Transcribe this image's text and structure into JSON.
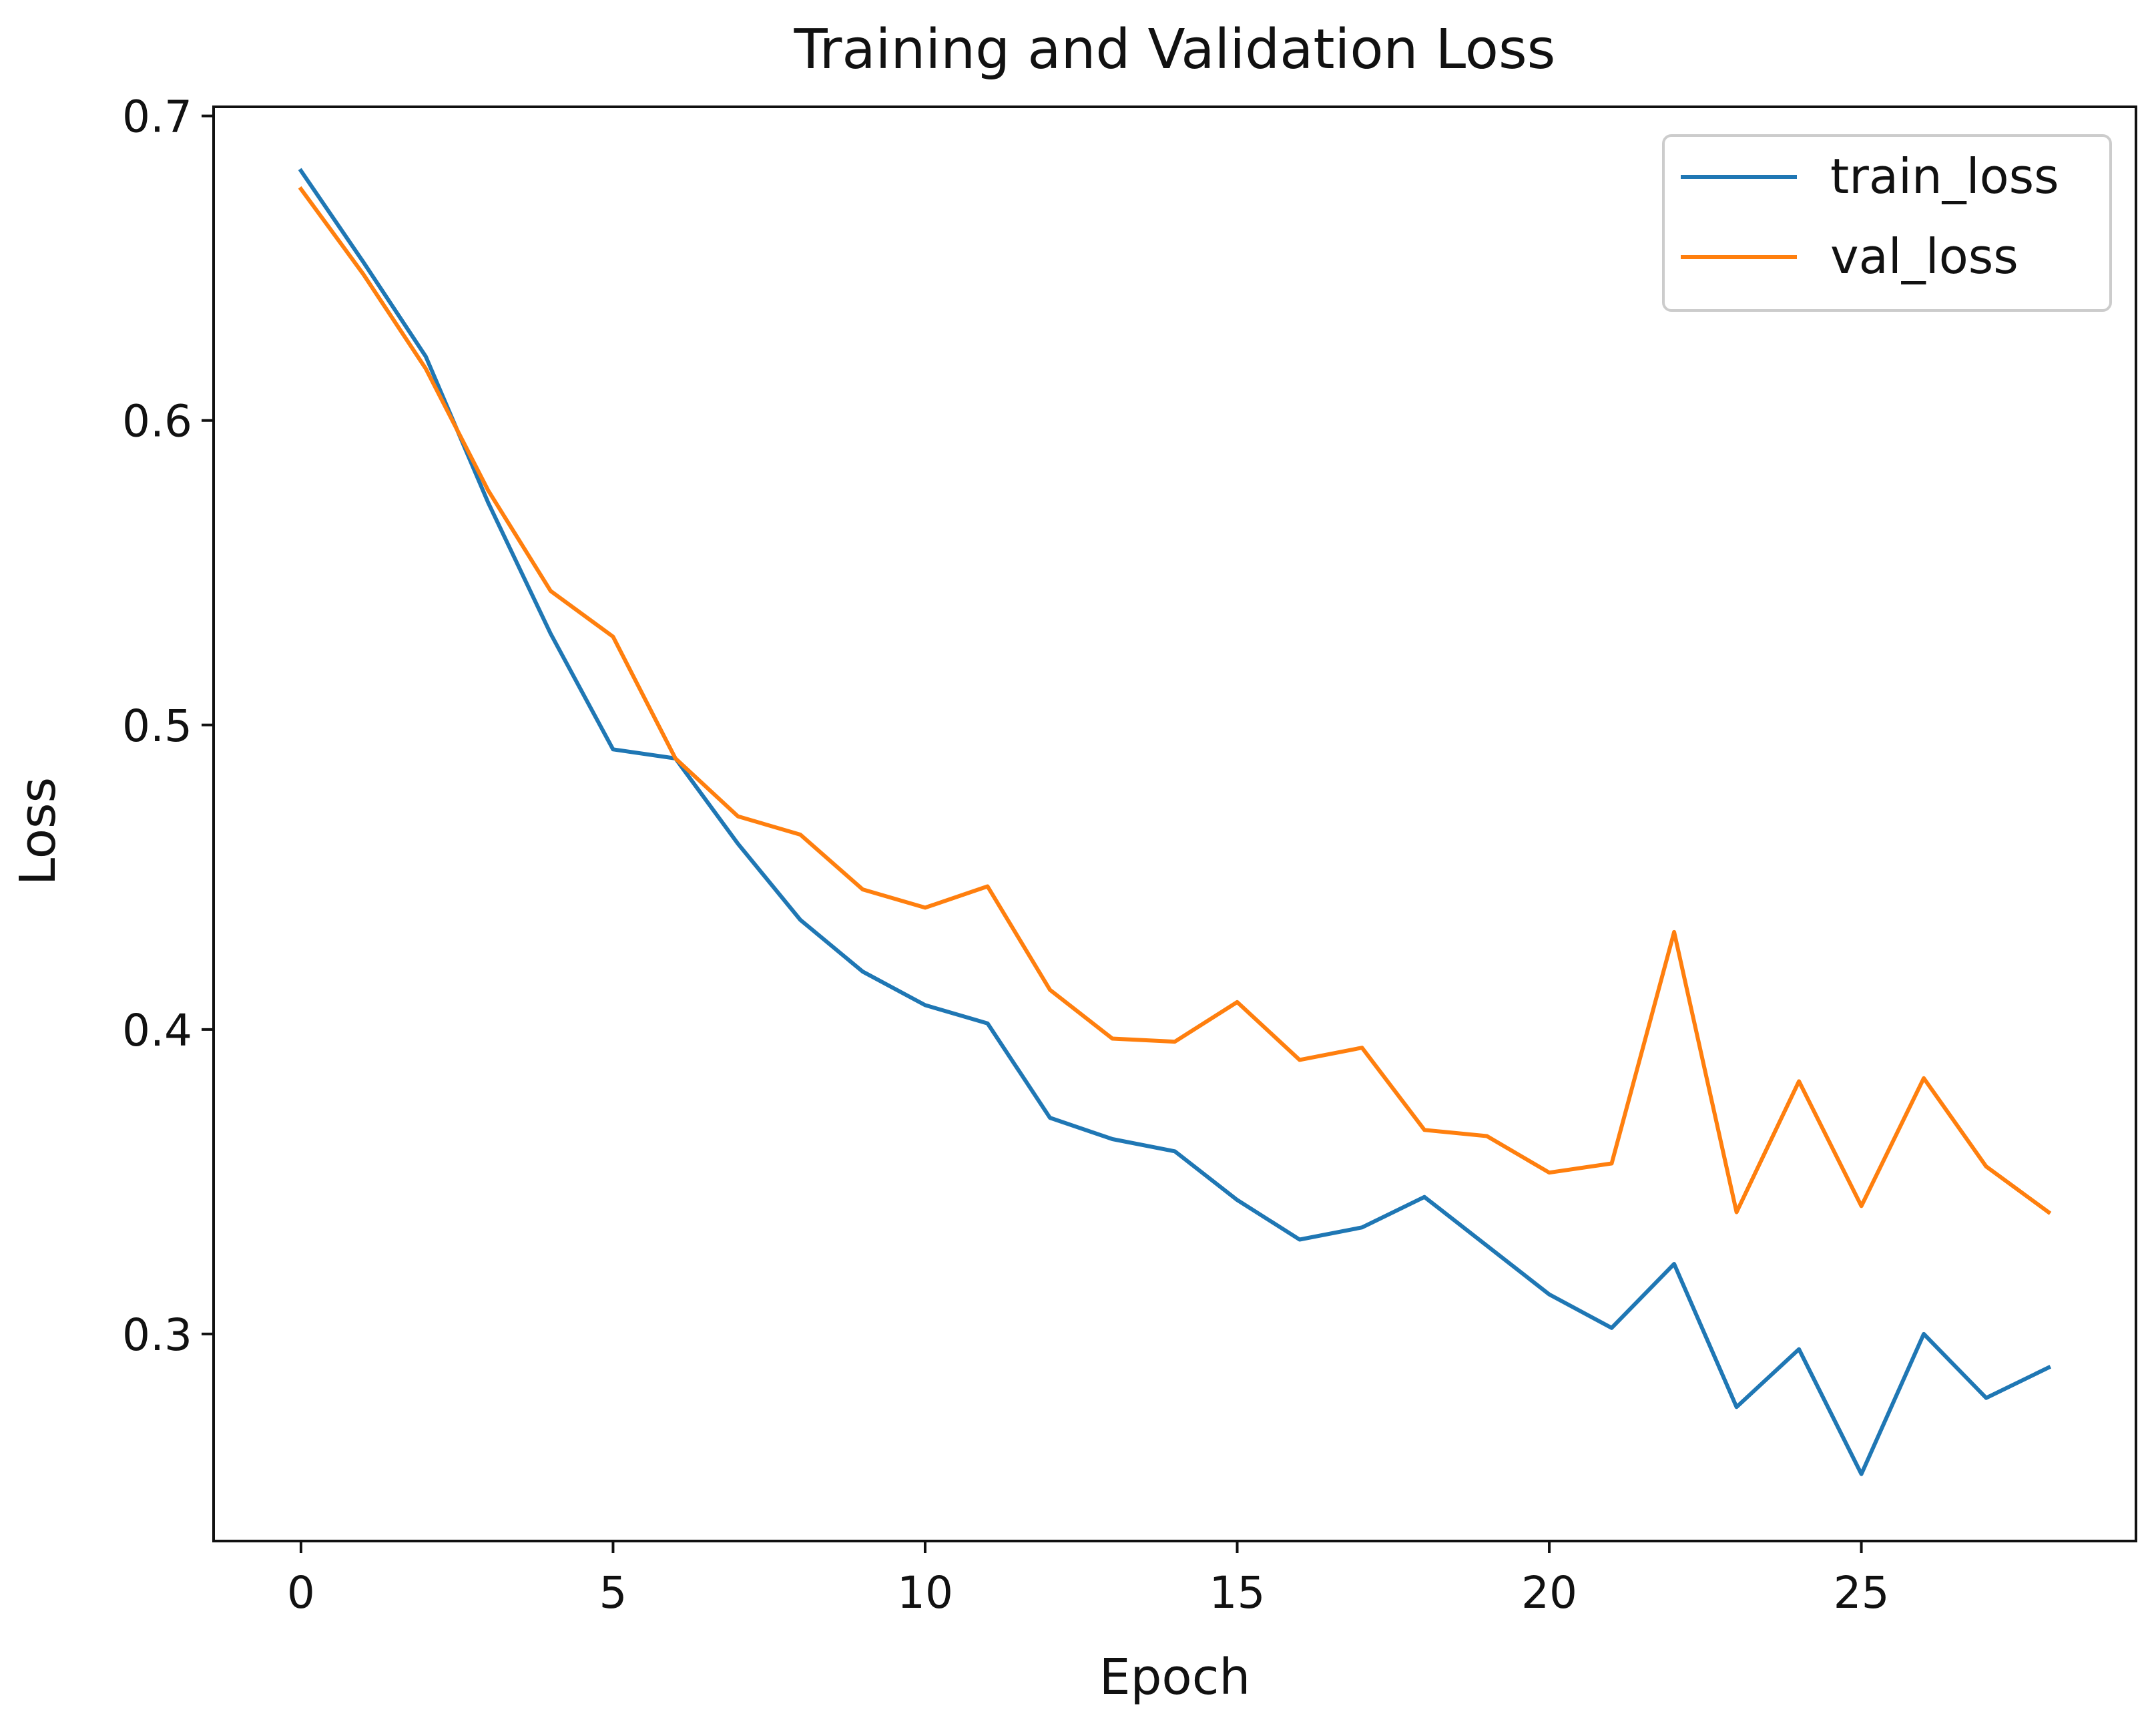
{
  "chart_data": {
    "type": "line",
    "title": "Training and Validation Loss",
    "xlabel": "Epoch",
    "ylabel": "Loss",
    "xlim": [
      -1.4,
      29.4
    ],
    "ylim": [
      0.232,
      0.703
    ],
    "xticks": [
      0,
      5,
      10,
      15,
      20,
      25
    ],
    "yticks": [
      0.3,
      0.4,
      0.5,
      0.6,
      0.7
    ],
    "xtick_labels": [
      "0",
      "5",
      "10",
      "15",
      "20",
      "25"
    ],
    "ytick_labels": [
      "0.3",
      "0.4",
      "0.5",
      "0.6",
      "0.7"
    ],
    "grid": false,
    "legend_position": "top-right",
    "x": [
      0,
      1,
      2,
      3,
      4,
      5,
      6,
      7,
      8,
      9,
      10,
      11,
      12,
      13,
      14,
      15,
      16,
      17,
      18,
      19,
      20,
      21,
      22,
      23,
      24,
      25,
      26,
      27,
      28
    ],
    "series": [
      {
        "name": "train_loss",
        "color": "#1f77b4",
        "values": [
          0.682,
          0.652,
          0.621,
          0.573,
          0.53,
          0.492,
          0.489,
          0.461,
          0.436,
          0.419,
          0.408,
          0.402,
          0.371,
          0.364,
          0.36,
          0.344,
          0.331,
          0.335,
          0.345,
          0.329,
          0.313,
          0.302,
          0.323,
          0.276,
          0.295,
          0.254,
          0.3,
          0.279,
          0.289
        ]
      },
      {
        "name": "val_loss",
        "color": "#ff7f0e",
        "values": [
          0.676,
          0.648,
          0.617,
          0.577,
          0.544,
          0.529,
          0.489,
          0.47,
          0.464,
          0.446,
          0.44,
          0.447,
          0.413,
          0.397,
          0.396,
          0.409,
          0.39,
          0.394,
          0.367,
          0.365,
          0.353,
          0.356,
          0.432,
          0.34,
          0.383,
          0.342,
          0.384,
          0.355,
          0.34
        ]
      }
    ]
  }
}
